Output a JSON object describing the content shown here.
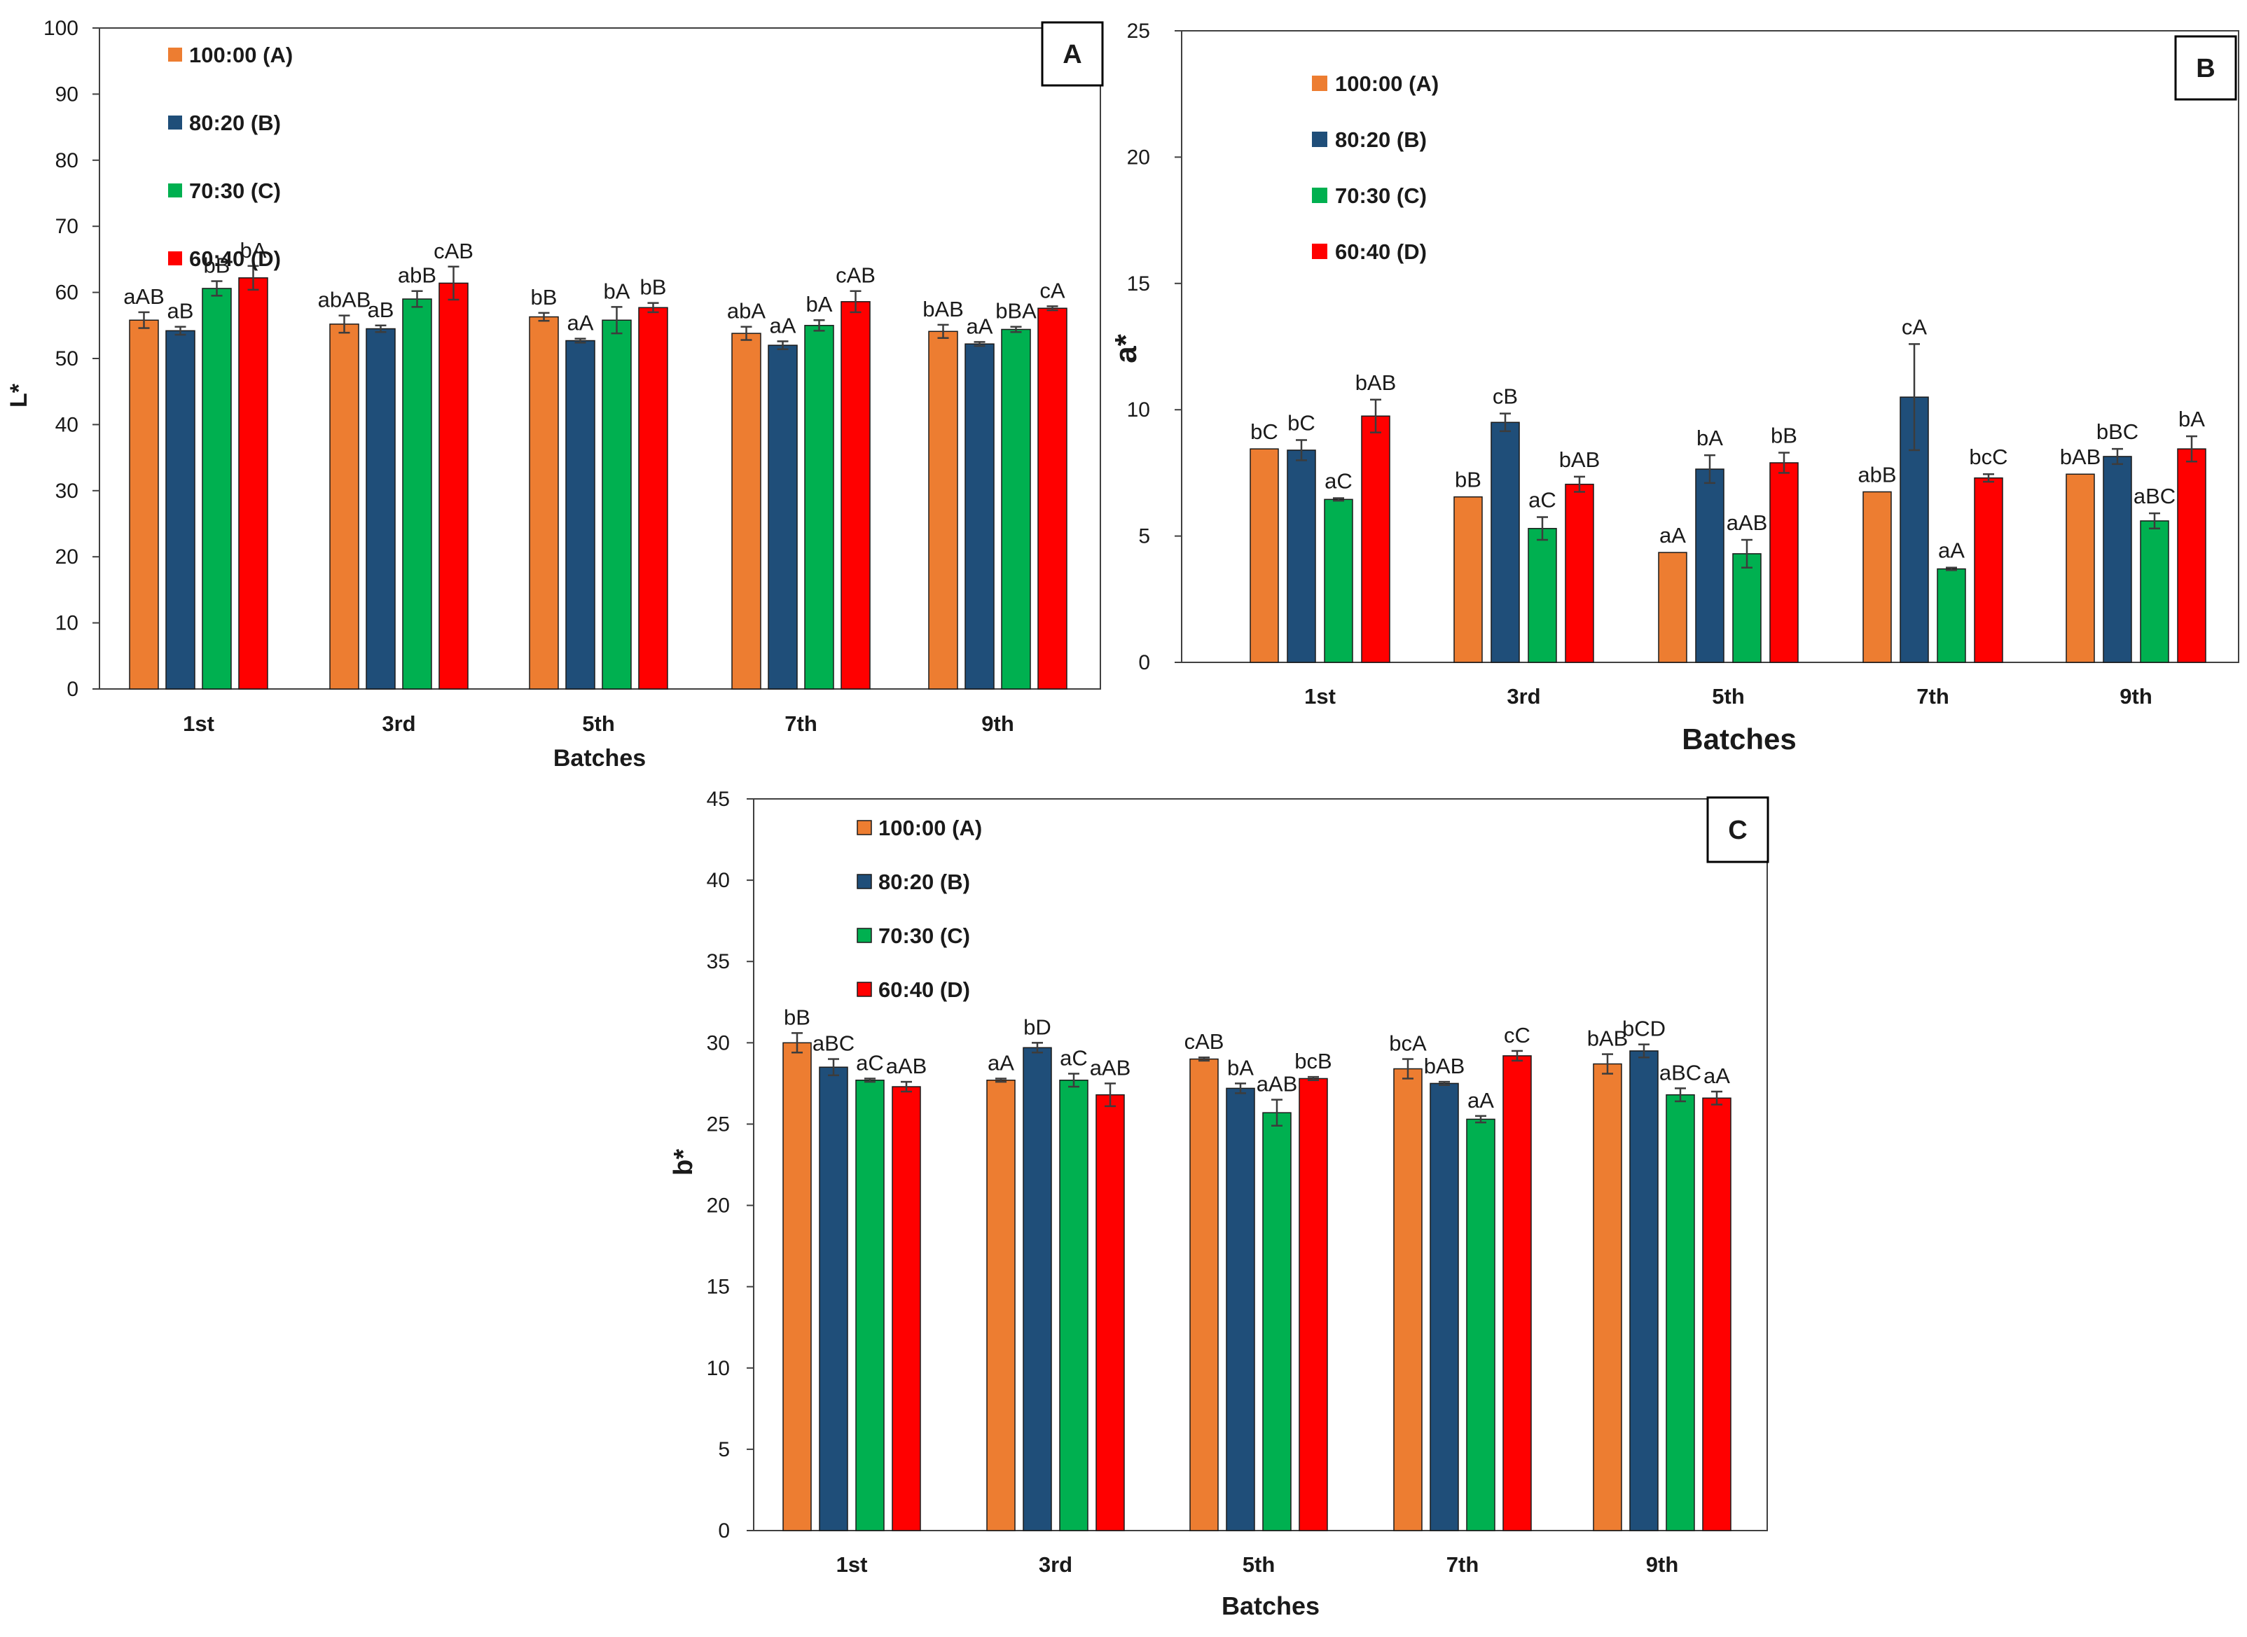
{
  "series_meta": [
    {
      "name": "100:00 (A)",
      "color": "#ED7D31"
    },
    {
      "name": "80:20 (B)",
      "color": "#1F4E79"
    },
    {
      "name": "70:30 (C)",
      "color": "#00B050"
    },
    {
      "name": "60:40 (D)",
      "color": "#FF0000"
    }
  ],
  "chart_data": [
    {
      "type": "bar",
      "panel_label": "A",
      "title": "",
      "xlabel": "Batches",
      "ylabel": "L*",
      "ylim": [
        0,
        100
      ],
      "yticks": [
        "0",
        "10",
        "20",
        "30",
        "40",
        "50",
        "60",
        "70",
        "80",
        "90",
        "100"
      ],
      "categories": [
        "1st",
        "3rd",
        "5th",
        "7th",
        "9th"
      ],
      "legend_position": "top-left",
      "grid": false,
      "series": [
        {
          "name": "100:00 (A)",
          "values": [
            55.8,
            55.2,
            56.3,
            53.8,
            54.1
          ],
          "errors": [
            1.2,
            1.3,
            0.6,
            1.0,
            1.0
          ],
          "labels": [
            "aAB",
            "abAB",
            "bB",
            "abA",
            "bAB"
          ]
        },
        {
          "name": "80:20 (B)",
          "values": [
            54.2,
            54.5,
            52.7,
            52.0,
            52.2
          ],
          "errors": [
            0.6,
            0.5,
            0.3,
            0.6,
            0.3
          ],
          "labels": [
            "aB",
            "aB",
            "aA",
            "aA",
            "aA"
          ]
        },
        {
          "name": "70:30 (C)",
          "values": [
            60.6,
            59.0,
            55.8,
            55.0,
            54.4
          ],
          "errors": [
            1.1,
            1.2,
            2.0,
            0.8,
            0.4
          ],
          "labels": [
            "bB",
            "abB",
            "bA",
            "bA",
            "bBA"
          ]
        },
        {
          "name": "60:40 (D)",
          "values": [
            62.2,
            61.4,
            57.7,
            58.6,
            57.6
          ],
          "errors": [
            1.8,
            2.5,
            0.7,
            1.6,
            0.3
          ],
          "labels": [
            "bA",
            "cAB",
            "bB",
            "cAB",
            "cA"
          ]
        }
      ]
    },
    {
      "type": "bar",
      "panel_label": "B",
      "title": "",
      "xlabel": "Batches",
      "ylabel": "a*",
      "ylim": [
        0,
        25
      ],
      "yticks": [
        "0",
        "5",
        "10",
        "15",
        "20",
        "25"
      ],
      "categories": [
        "1st",
        "3rd",
        "5th",
        "7th",
        "9th"
      ],
      "legend_position": "top-left",
      "grid": false,
      "series": [
        {
          "name": "100:00 (A)",
          "values": [
            8.45,
            6.55,
            4.35,
            6.75,
            7.45
          ],
          "errors": [
            0,
            0,
            0,
            0,
            0
          ],
          "labels": [
            "bC",
            "bB",
            "aA",
            "abB",
            "bAB"
          ]
        },
        {
          "name": "80:20 (B)",
          "values": [
            8.4,
            9.5,
            7.65,
            10.5,
            8.15
          ],
          "errors": [
            0.4,
            0.35,
            0.55,
            2.1,
            0.3
          ],
          "labels": [
            "bC",
            "cB",
            "bA",
            "cA",
            "bBC"
          ]
        },
        {
          "name": "70:30 (C)",
          "values": [
            6.45,
            5.3,
            4.3,
            3.7,
            5.6
          ],
          "errors": [
            0.05,
            0.45,
            0.55,
            0.05,
            0.3
          ],
          "labels": [
            "aC",
            "aC",
            "aAB",
            "aA",
            "aBC"
          ]
        },
        {
          "name": "60:40 (D)",
          "values": [
            9.75,
            7.05,
            7.9,
            7.3,
            8.45
          ],
          "errors": [
            0.65,
            0.3,
            0.4,
            0.15,
            0.5
          ],
          "labels": [
            "bAB",
            "bAB",
            "bB",
            "bcC",
            "bA"
          ]
        }
      ]
    },
    {
      "type": "bar",
      "panel_label": "C",
      "title": "",
      "xlabel": "Batches",
      "ylabel": "b*",
      "ylim": [
        0,
        45
      ],
      "yticks": [
        "0",
        "5",
        "10",
        "15",
        "20",
        "25",
        "30",
        "35",
        "40",
        "45"
      ],
      "categories": [
        "1st",
        "3rd",
        "5th",
        "7th",
        "9th"
      ],
      "legend_position": "top-left",
      "grid": false,
      "series": [
        {
          "name": "100:00 (A)",
          "values": [
            30.0,
            27.7,
            29.0,
            28.4,
            28.7
          ],
          "errors": [
            0.6,
            0.1,
            0.1,
            0.6,
            0.6
          ],
          "labels": [
            "bB",
            "aA",
            "cAB",
            "bcA",
            "bAB"
          ]
        },
        {
          "name": "80:20 (B)",
          "values": [
            28.5,
            29.7,
            27.2,
            27.5,
            29.5
          ],
          "errors": [
            0.5,
            0.3,
            0.3,
            0.1,
            0.4
          ],
          "labels": [
            "aBC",
            "bD",
            "bA",
            "bAB",
            "bCD"
          ]
        },
        {
          "name": "70:30 (C)",
          "values": [
            27.7,
            27.7,
            25.7,
            25.3,
            26.8
          ],
          "errors": [
            0.1,
            0.4,
            0.8,
            0.2,
            0.4
          ],
          "labels": [
            "aC",
            "aC",
            "aAB",
            "aA",
            "aBC"
          ]
        },
        {
          "name": "60:40 (D)",
          "values": [
            27.3,
            26.8,
            27.8,
            29.2,
            26.6
          ],
          "errors": [
            0.3,
            0.7,
            0.1,
            0.3,
            0.4
          ],
          "labels": [
            "aAB",
            "aAB",
            "bcB",
            "cC",
            "aA"
          ]
        }
      ]
    }
  ]
}
